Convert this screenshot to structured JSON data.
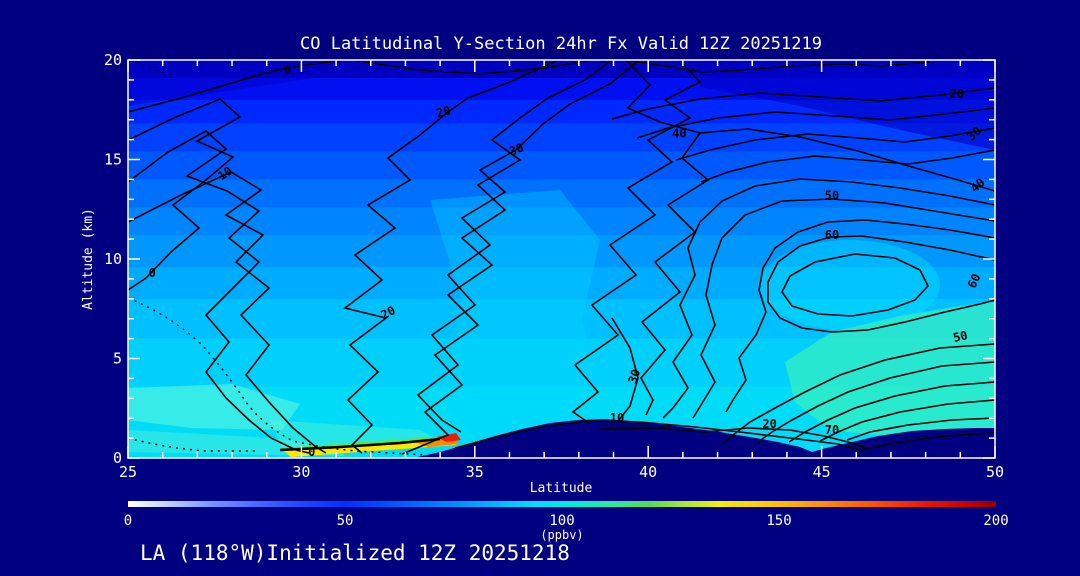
{
  "page_bg": "#000080",
  "title": "CO Latitudinal Y-Section 24hr  Fx Valid 12Z 20251219",
  "footer": "LA (118°W)Initialized 12Z 20251218",
  "axes": {
    "x": {
      "label": "Latitude",
      "min": 25,
      "max": 50,
      "major_ticks": [
        25,
        30,
        35,
        40,
        45,
        50
      ],
      "minor_step": 1
    },
    "y": {
      "label": "Altitude (km)",
      "min": 0,
      "max": 20,
      "major_ticks": [
        0,
        5,
        10,
        15,
        20
      ],
      "minor_step": 1
    }
  },
  "colorbar": {
    "label": "(ppbv)",
    "min": 0,
    "max": 200,
    "ticks": [
      0,
      50,
      100,
      150,
      200
    ],
    "stops": [
      [
        0,
        "#ffffff"
      ],
      [
        0.04,
        "#c8d8ff"
      ],
      [
        0.1,
        "#7090ff"
      ],
      [
        0.18,
        "#3050ff"
      ],
      [
        0.25,
        "#0030ff"
      ],
      [
        0.32,
        "#0060ff"
      ],
      [
        0.38,
        "#0090ff"
      ],
      [
        0.43,
        "#00bcff"
      ],
      [
        0.47,
        "#00e0ff"
      ],
      [
        0.52,
        "#00eed0"
      ],
      [
        0.56,
        "#30e8a0"
      ],
      [
        0.6,
        "#50dd55"
      ],
      [
        0.64,
        "#a8e830"
      ],
      [
        0.68,
        "#f0f000"
      ],
      [
        0.74,
        "#ffc800"
      ],
      [
        0.8,
        "#ff9000"
      ],
      [
        0.86,
        "#ff5000"
      ],
      [
        0.92,
        "#e81800"
      ],
      [
        0.97,
        "#c00000"
      ],
      [
        1,
        "#900000"
      ]
    ]
  },
  "chart_data": {
    "type": "contour",
    "title": "CO Latitudinal Y-Section 24hr  Fx Valid 12Z 20251219",
    "x_axis": {
      "label": "Latitude",
      "range": [
        25,
        50
      ]
    },
    "y_axis": {
      "label": "Altitude (km)",
      "range": [
        0,
        20
      ]
    },
    "units": "ppbv",
    "contour_interval": 5,
    "labeled_levels": [
      0,
      10,
      20,
      30,
      40,
      50,
      60,
      70
    ],
    "max_region": {
      "latitude": 44,
      "altitude_km": 9.5,
      "value_ppbv": 65
    },
    "surface_high_co_strip": {
      "lat_range": [
        29.5,
        34.5
      ],
      "value_ppbv": "150-200",
      "description": "thin green-yellow-orange-red surface layer west of coastal ridge"
    },
    "terrain": {
      "center_ridge_lat_range": [
        34,
        44
      ],
      "center_ridge_height_km": 2,
      "right_ridge_lat_range": [
        45,
        50
      ],
      "right_ridge_height_km": 1.5
    },
    "fill_bands": [
      "#0000be",
      "#0010f0",
      "#0028ff",
      "#0040ff",
      "#0058ff",
      "#0070ff",
      "#0084ff",
      "#0098ff",
      "#00acff",
      "#00c0ff",
      "#00d0fb",
      "#00dcf8"
    ],
    "contour_labels": [
      {
        "value": 0,
        "lat": 29.6,
        "km": 19.5,
        "rot": -10
      },
      {
        "value": 10,
        "lat": 38.8,
        "km": 20.1,
        "rot": 0
      },
      {
        "value": 20,
        "lat": 34.1,
        "km": 17.4,
        "rot": -15
      },
      {
        "value": 30,
        "lat": 36.2,
        "km": 15.5,
        "rot": -22
      },
      {
        "value": 40,
        "lat": 40.9,
        "km": 16.3,
        "rot": 0
      },
      {
        "value": 20,
        "lat": 48.9,
        "km": 18.3,
        "rot": 0
      },
      {
        "value": 30,
        "lat": 49.4,
        "km": 16.3,
        "rot": -42
      },
      {
        "value": 40,
        "lat": 49.5,
        "km": 13.7,
        "rot": -42
      },
      {
        "value": 50,
        "lat": 45.3,
        "km": 13.2,
        "rot": 0
      },
      {
        "value": 60,
        "lat": 45.3,
        "km": 11.2,
        "rot": 0
      },
      {
        "value": 60,
        "lat": 49.4,
        "km": 8.9,
        "rot": -65
      },
      {
        "value": 50,
        "lat": 49.0,
        "km": 6.1,
        "rot": -12
      },
      {
        "value": 10,
        "lat": 27.8,
        "km": 14.3,
        "rot": -35
      },
      {
        "value": 0,
        "lat": 25.7,
        "km": 9.3,
        "rot": 0
      },
      {
        "value": 20,
        "lat": 32.5,
        "km": 7.3,
        "rot": -28
      },
      {
        "value": 30,
        "lat": 39.6,
        "km": 4.1,
        "rot": -72
      },
      {
        "value": 10,
        "lat": 39.1,
        "km": 2.0,
        "rot": 0
      },
      {
        "value": 20,
        "lat": 43.5,
        "km": 1.7,
        "rot": 0
      },
      {
        "value": 70,
        "lat": 45.3,
        "km": 1.4,
        "rot": 0
      },
      {
        "value": 0,
        "lat": 30.3,
        "km": 0.3,
        "rot": 0
      }
    ]
  }
}
